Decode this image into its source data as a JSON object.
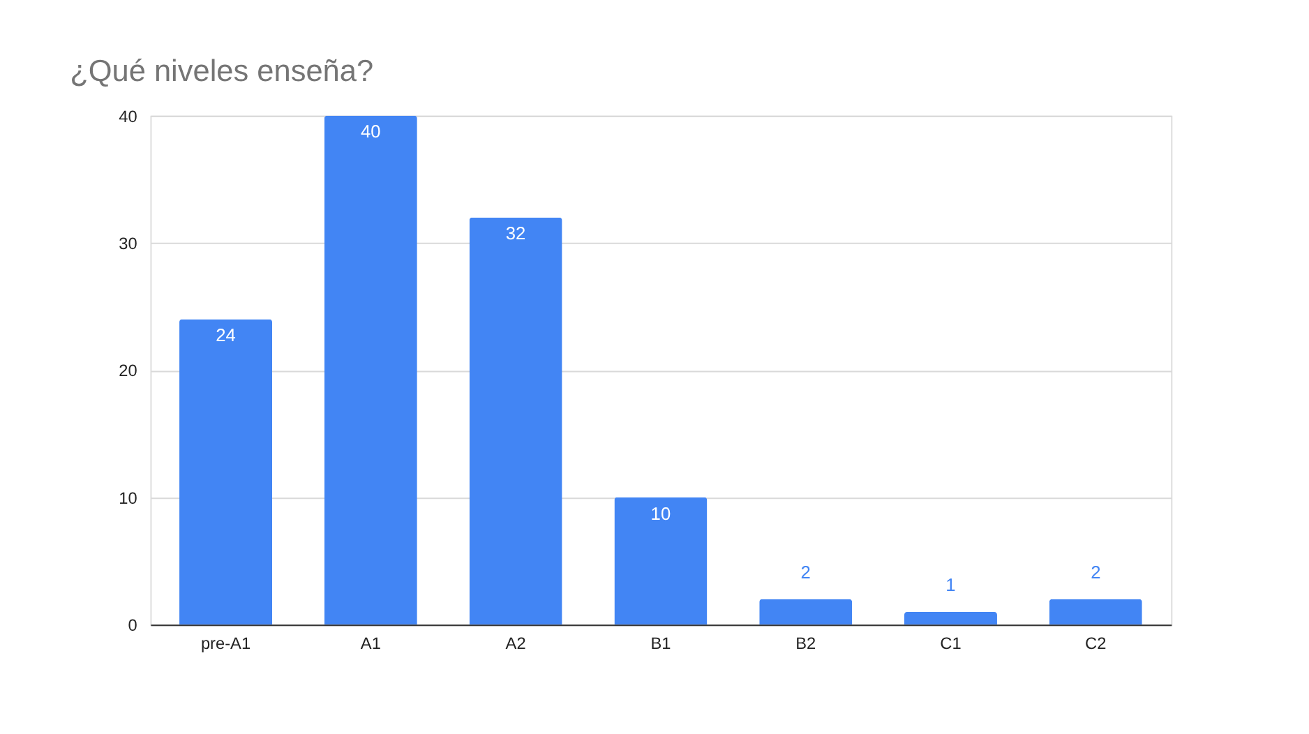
{
  "chart_data": {
    "type": "bar",
    "title": "¿Qué niveles enseña?",
    "categories": [
      "pre-A1",
      "A1",
      "A2",
      "B1",
      "B2",
      "C1",
      "C2"
    ],
    "values": [
      24,
      40,
      32,
      10,
      2,
      1,
      2
    ],
    "color": "#4285f4",
    "ylim": [
      0,
      40
    ],
    "yticks": [
      0,
      10,
      20,
      30,
      40
    ],
    "grid": "y",
    "data_labels": true
  }
}
